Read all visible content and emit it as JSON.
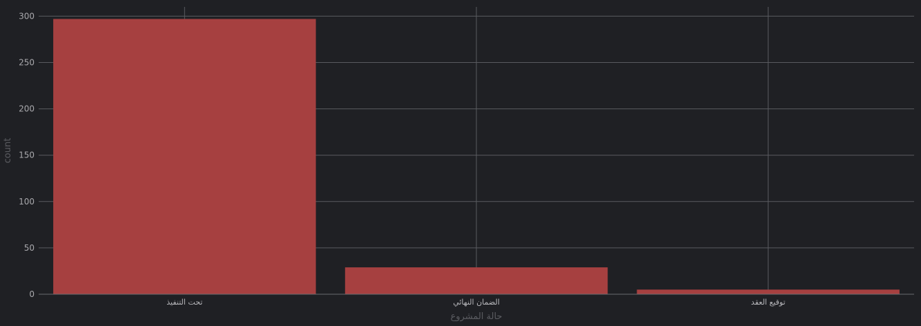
{
  "chart_data": {
    "type": "bar",
    "categories": [
      "تحت التنفيذ",
      "الضمان النهائي",
      "توقيع العقد"
    ],
    "values": [
      297,
      29,
      5
    ],
    "xlabel": "حالة المشروع",
    "ylabel": "count",
    "ylim": [
      0,
      310
    ],
    "yticks": [
      0,
      50,
      100,
      150,
      200,
      250,
      300
    ],
    "grid": true,
    "bar_color": "#a64040",
    "background_color": "#1f2024",
    "grid_color": "#5a5b60"
  }
}
